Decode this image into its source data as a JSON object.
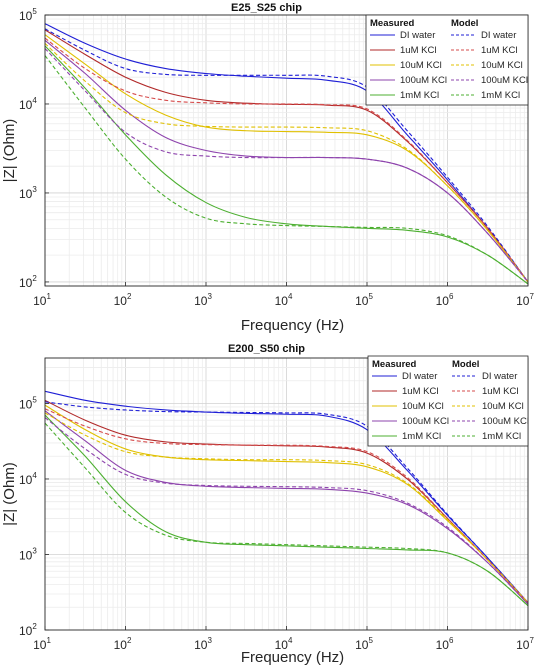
{
  "chart_data": [
    {
      "type": "line",
      "title": "E25_S25 chip",
      "xlabel": "Frequency (Hz)",
      "ylabel": "|Z| (Ohm)",
      "xscale": "log",
      "yscale": "log",
      "xlim": [
        10,
        10000000
      ],
      "ylim": [
        90,
        100000
      ],
      "grid": true,
      "legend_placement": "top-right",
      "legend_headers": [
        "Measured",
        "Model"
      ],
      "x_ticks": [
        {
          "value": 10,
          "base": "10",
          "exp": "1"
        },
        {
          "value": 100,
          "base": "10",
          "exp": "2"
        },
        {
          "value": 1000,
          "base": "10",
          "exp": "3"
        },
        {
          "value": 10000,
          "base": "10",
          "exp": "4"
        },
        {
          "value": 100000,
          "base": "10",
          "exp": "5"
        },
        {
          "value": 1000000,
          "base": "10",
          "exp": "6"
        },
        {
          "value": 10000000,
          "base": "10",
          "exp": "7"
        }
      ],
      "y_ticks": [
        {
          "value": 100,
          "base": "10",
          "exp": "2"
        },
        {
          "value": 1000,
          "base": "10",
          "exp": "3"
        },
        {
          "value": 10000,
          "base": "10",
          "exp": "4"
        },
        {
          "value": 100000,
          "base": "10",
          "exp": "5"
        }
      ],
      "x": [
        10,
        31.6,
        100,
        316,
        1000,
        3160,
        10000,
        31600,
        100000,
        316000,
        1000000,
        3160000,
        10000000
      ],
      "series": [
        {
          "name": "DI water",
          "group": "Measured",
          "color": "#1f1fd6",
          "dash": "solid",
          "values": [
            80000,
            48000,
            32000,
            25000,
            22000,
            20500,
            19500,
            18500,
            14000,
            4500,
            1400,
            400,
            100
          ]
        },
        {
          "name": "1uM KCl",
          "group": "Measured",
          "color": "#b22a2a",
          "dash": "solid",
          "values": [
            68000,
            36000,
            20000,
            13500,
            11000,
            10200,
            9900,
            9700,
            8500,
            3800,
            1300,
            400,
            100
          ]
        },
        {
          "name": "10uM KCl",
          "group": "Measured",
          "color": "#e0c000",
          "dash": "solid",
          "values": [
            60000,
            28000,
            13000,
            7500,
            5500,
            5000,
            4900,
            4800,
            4500,
            3000,
            1200,
            380,
            100
          ]
        },
        {
          "name": "100uM KCl",
          "group": "Measured",
          "color": "#8e44ad",
          "dash": "solid",
          "values": [
            52000,
            22000,
            8500,
            4200,
            3000,
            2600,
            2500,
            2500,
            2400,
            1900,
            1000,
            350,
            100
          ]
        },
        {
          "name": "1mM KCl",
          "group": "Measured",
          "color": "#4caf30",
          "dash": "solid",
          "values": [
            45000,
            15000,
            4500,
            1600,
            780,
            530,
            450,
            420,
            400,
            380,
            320,
            200,
            95
          ]
        },
        {
          "name": "DI water",
          "group": "Model",
          "color": "#1f1fd6",
          "dash": "dashed",
          "values": [
            70000,
            40000,
            25000,
            21500,
            21000,
            21000,
            21000,
            20500,
            15500,
            5000,
            1500,
            420,
            100
          ]
        },
        {
          "name": "1uM KCl",
          "group": "Model",
          "color": "#d64b4b",
          "dash": "dashed",
          "values": [
            55000,
            25000,
            14000,
            11000,
            10300,
            10000,
            10000,
            9800,
            8800,
            3900,
            1300,
            400,
            100
          ]
        },
        {
          "name": "10uM KCl",
          "group": "Model",
          "color": "#e0c000",
          "dash": "dashed",
          "values": [
            48000,
            18000,
            8000,
            6000,
            5600,
            5500,
            5500,
            5400,
            5000,
            3100,
            1200,
            380,
            100
          ]
        },
        {
          "name": "100uM KCl",
          "group": "Model",
          "color": "#8e44ad",
          "dash": "dashed",
          "values": [
            42000,
            14000,
            4800,
            2900,
            2600,
            2500,
            2500,
            2500,
            2400,
            1900,
            1000,
            350,
            100
          ]
        },
        {
          "name": "1mM KCl",
          "group": "Model",
          "color": "#4caf30",
          "dash": "dashed",
          "values": [
            35000,
            9000,
            2400,
            900,
            520,
            450,
            430,
            420,
            410,
            400,
            330,
            200,
            95
          ]
        }
      ]
    },
    {
      "type": "line",
      "title": "E200_S50 chip",
      "xlabel": "Frequency (Hz)",
      "ylabel": "|Z| (Ohm)",
      "xscale": "log",
      "yscale": "log",
      "xlim": [
        10,
        10000000
      ],
      "ylim": [
        100,
        400000
      ],
      "grid": true,
      "legend_placement": "top-right",
      "legend_headers": [
        "Measured",
        "Model"
      ],
      "x_ticks": [
        {
          "value": 10,
          "base": "10",
          "exp": "1"
        },
        {
          "value": 100,
          "base": "10",
          "exp": "2"
        },
        {
          "value": 1000,
          "base": "10",
          "exp": "3"
        },
        {
          "value": 10000,
          "base": "10",
          "exp": "4"
        },
        {
          "value": 100000,
          "base": "10",
          "exp": "5"
        },
        {
          "value": 1000000,
          "base": "10",
          "exp": "6"
        },
        {
          "value": 10000000,
          "base": "10",
          "exp": "7"
        }
      ],
      "y_ticks": [
        {
          "value": 100,
          "base": "10",
          "exp": "2"
        },
        {
          "value": 1000,
          "base": "10",
          "exp": "3"
        },
        {
          "value": 10000,
          "base": "10",
          "exp": "4"
        },
        {
          "value": 100000,
          "base": "10",
          "exp": "5"
        }
      ],
      "x": [
        10,
        31.6,
        100,
        316,
        1000,
        3160,
        10000,
        31600,
        100000,
        316000,
        1000000,
        3160000,
        10000000
      ],
      "series": [
        {
          "name": "DI water",
          "group": "Measured",
          "color": "#1f1fd6",
          "dash": "solid",
          "values": [
            145000,
            110000,
            92000,
            82000,
            77000,
            74000,
            72000,
            68000,
            45000,
            13000,
            3300,
            900,
            230
          ]
        },
        {
          "name": "1uM KCl",
          "group": "Measured",
          "color": "#b22a2a",
          "dash": "solid",
          "values": [
            110000,
            60000,
            38000,
            31000,
            29000,
            28000,
            27500,
            26500,
            22000,
            10000,
            3000,
            850,
            230
          ]
        },
        {
          "name": "10uM KCl",
          "group": "Measured",
          "color": "#e0c000",
          "dash": "solid",
          "values": [
            95000,
            45000,
            25000,
            19500,
            18000,
            17500,
            17000,
            16500,
            14500,
            8500,
            2800,
            850,
            230
          ]
        },
        {
          "name": "100uM KCl",
          "group": "Measured",
          "color": "#8e44ad",
          "dash": "solid",
          "values": [
            80000,
            32000,
            13000,
            9000,
            8000,
            7700,
            7500,
            7300,
            6500,
            4600,
            2200,
            780,
            220
          ]
        },
        {
          "name": "1mM KCl",
          "group": "Measured",
          "color": "#4caf30",
          "dash": "solid",
          "values": [
            70000,
            20000,
            5000,
            2000,
            1450,
            1350,
            1300,
            1250,
            1200,
            1150,
            1050,
            600,
            210
          ]
        },
        {
          "name": "DI water",
          "group": "Model",
          "color": "#1f1fd6",
          "dash": "dashed",
          "values": [
            105000,
            90000,
            82000,
            78000,
            77000,
            76000,
            75000,
            72000,
            50000,
            14000,
            3400,
            900,
            230
          ]
        },
        {
          "name": "1uM KCl",
          "group": "Model",
          "color": "#d64b4b",
          "dash": "dashed",
          "values": [
            85000,
            50000,
            34000,
            29500,
            28500,
            28000,
            28000,
            27000,
            23000,
            10500,
            3000,
            850,
            230
          ]
        },
        {
          "name": "10uM KCl",
          "group": "Model",
          "color": "#e0c000",
          "dash": "dashed",
          "values": [
            75000,
            38000,
            23000,
            19500,
            18500,
            18000,
            18000,
            17500,
            15500,
            8800,
            2900,
            850,
            230
          ]
        },
        {
          "name": "100uM KCl",
          "group": "Model",
          "color": "#8e44ad",
          "dash": "dashed",
          "values": [
            65000,
            25000,
            11500,
            8800,
            8200,
            8000,
            7900,
            7700,
            7000,
            4800,
            2300,
            780,
            220
          ]
        },
        {
          "name": "1mM KCl",
          "group": "Model",
          "color": "#4caf30",
          "dash": "dashed",
          "values": [
            55000,
            14000,
            3600,
            1800,
            1450,
            1400,
            1350,
            1300,
            1250,
            1200,
            1050,
            600,
            210
          ]
        }
      ]
    }
  ]
}
